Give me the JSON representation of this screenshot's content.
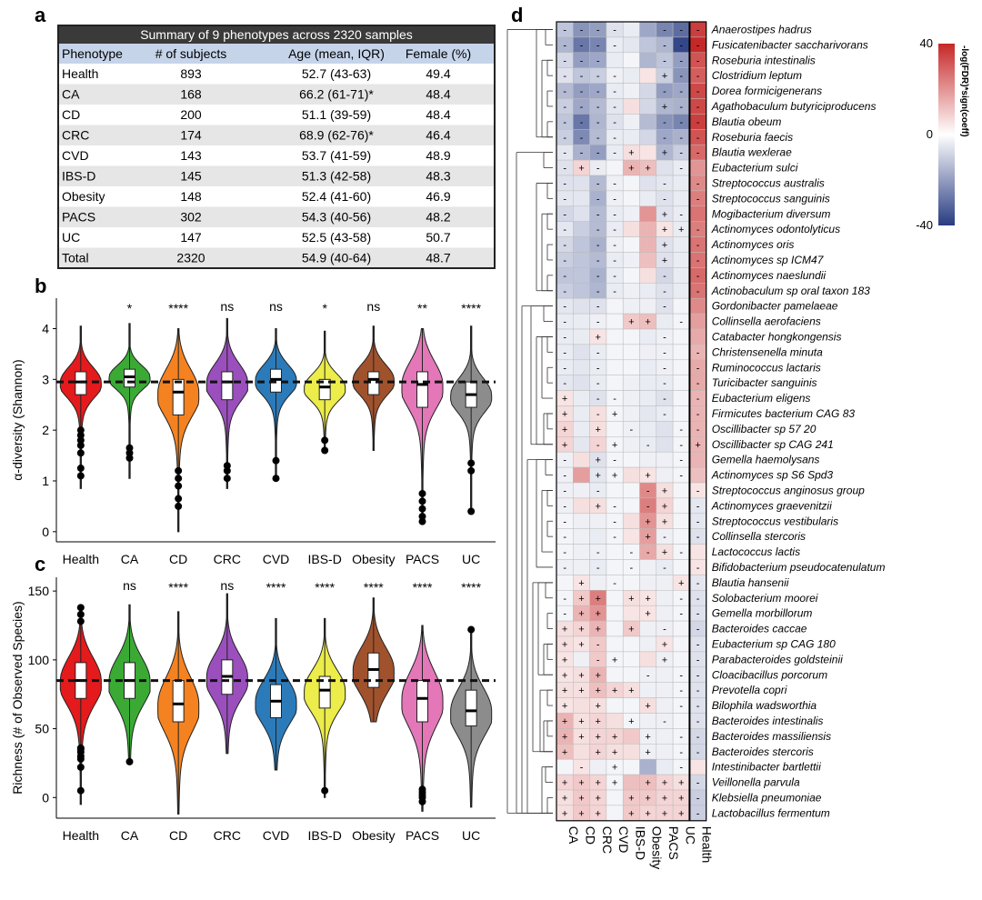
{
  "panel_labels": {
    "a": "a",
    "b": "b",
    "c": "c",
    "d": "d"
  },
  "table": {
    "title": "Summary of 9 phenotypes across 2320 samples",
    "headers": [
      "Phenotype",
      "# of subjects",
      "Age (mean, IQR)",
      "Female (%)"
    ],
    "rows": [
      [
        "Health",
        "893",
        "52.7 (43-63)",
        "49.4"
      ],
      [
        "CA",
        "168",
        "66.2 (61-71)*",
        "48.4"
      ],
      [
        "CD",
        "200",
        "51.1 (39-59)",
        "48.4"
      ],
      [
        "CRC",
        "174",
        "68.9 (62-76)*",
        "46.4"
      ],
      [
        "CVD",
        "143",
        "53.7 (41-59)",
        "48.9"
      ],
      [
        "IBS-D",
        "145",
        "51.3 (42-58)",
        "48.3"
      ],
      [
        "Obesity",
        "148",
        "52.4 (41-60)",
        "46.9"
      ],
      [
        "PACS",
        "302",
        "54.3 (40-56)",
        "48.2"
      ],
      [
        "UC",
        "147",
        "52.5 (43-58)",
        "50.7"
      ],
      [
        "Total",
        "2320",
        "54.9 (40-64)",
        "48.7"
      ]
    ]
  },
  "colors": {
    "Health": "#e41a1c",
    "CA": "#3aaa35",
    "CD": "#f58220",
    "CRC": "#9b4fbd",
    "CVD": "#2b7bba",
    "IBS-D": "#ecec4a",
    "Obesity": "#a0522d",
    "PACS": "#e377b8",
    "UC": "#8c8c8c"
  },
  "chart_data": [
    {
      "type": "violin",
      "title": "",
      "ylabel": "α-diversity (Shannon)",
      "xlabel": "",
      "categories": [
        "Health",
        "CA",
        "CD",
        "CRC",
        "CVD",
        "IBS-D",
        "Obesity",
        "PACS",
        "UC"
      ],
      "medians": [
        2.95,
        3.05,
        2.75,
        2.95,
        3.0,
        2.85,
        3.0,
        2.9,
        2.7
      ],
      "q1": [
        2.7,
        2.85,
        2.3,
        2.6,
        2.75,
        2.6,
        2.7,
        2.45,
        2.45
      ],
      "q3": [
        3.15,
        3.2,
        3.0,
        3.15,
        3.2,
        3.0,
        3.15,
        3.15,
        2.95
      ],
      "min": [
        0.85,
        1.05,
        0.0,
        0.85,
        1.05,
        1.55,
        1.6,
        0.15,
        0.4
      ],
      "max": [
        4.05,
        4.1,
        4.0,
        4.2,
        4.0,
        3.95,
        4.05,
        4.0,
        4.05
      ],
      "outliers": [
        [
          1.1,
          1.25,
          1.55,
          1.7,
          1.8,
          1.9,
          2.0
        ],
        [
          1.45,
          1.55,
          1.65
        ],
        [
          0.5,
          0.65,
          0.9,
          1.05,
          1.2
        ],
        [
          1.05,
          1.2,
          1.3
        ],
        [
          1.05,
          1.4
        ],
        [
          1.6,
          1.8
        ],
        [],
        [
          0.2,
          0.3,
          0.45,
          0.6,
          0.75
        ],
        [
          0.4,
          1.2,
          1.35
        ]
      ],
      "reference_line": 2.95,
      "significance": [
        "",
        "*",
        "****",
        "ns",
        "ns",
        "*",
        "ns",
        "**",
        "****"
      ],
      "ylim": [
        -0.2,
        4.6
      ],
      "yticks": [
        0,
        1,
        2,
        3,
        4
      ]
    },
    {
      "type": "violin",
      "title": "",
      "ylabel": "Richness (# of Observed Species)",
      "xlabel": "",
      "categories": [
        "Health",
        "CA",
        "CD",
        "CRC",
        "CVD",
        "IBS-D",
        "Obesity",
        "PACS",
        "UC"
      ],
      "medians": [
        85,
        85,
        68,
        88,
        70,
        78,
        93,
        72,
        63
      ],
      "q1": [
        72,
        72,
        55,
        75,
        58,
        65,
        80,
        55,
        52
      ],
      "q3": [
        98,
        98,
        85,
        100,
        82,
        88,
        105,
        85,
        78
      ],
      "min": [
        -5,
        25,
        -12,
        32,
        20,
        0,
        55,
        -10,
        -7
      ],
      "max": [
        140,
        140,
        135,
        148,
        130,
        130,
        145,
        125,
        122
      ],
      "outliers": [
        [
          5,
          22,
          28,
          30,
          33,
          35,
          36,
          128,
          133,
          138
        ],
        [
          26
        ],
        [],
        [],
        [],
        [
          5
        ],
        [],
        [
          -3,
          0,
          2,
          4,
          6
        ],
        [
          122
        ]
      ],
      "reference_line": 85,
      "significance": [
        "",
        "ns",
        "****",
        "ns",
        "****",
        "****",
        "****",
        "****",
        "****"
      ],
      "ylim": [
        -15,
        160
      ],
      "yticks": [
        0,
        50,
        100,
        150
      ]
    },
    {
      "type": "heatmap",
      "title": "",
      "legend_title": "-log(FDR)*sign(coeff)",
      "legend_ticks": [
        "40",
        "0",
        "-40"
      ],
      "columns": [
        "CA",
        "CD",
        "CRC",
        "CVD",
        "IBS-D",
        "Obesity",
        "PACS",
        "UC",
        "Health"
      ],
      "rows": [
        "Anaerostipes hadrus",
        "Fusicatenibacter saccharivorans",
        "Roseburia intestinalis",
        "Clostridium leptum",
        "Dorea formicigenerans",
        "Agathobaculum butyriciproducens",
        "Blautia obeum",
        "Roseburia faecis",
        "Blautia wexlerae",
        "Eubacterium sulci",
        "Streptococcus australis",
        "Streptococcus sanguinis",
        "Mogibacterium diversum",
        "Actinomyces odontolyticus",
        "Actinomyces oris",
        "Actinomyces sp ICM47",
        "Actinomyces naeslundii",
        "Actinobaculum sp oral taxon 183",
        "Gordonibacter pamelaeae",
        "Collinsella aerofaciens",
        "Catabacter hongkongensis",
        "Christensenella minuta",
        "Ruminococcus lactaris",
        "Turicibacter sanguinis",
        "Eubacterium eligens",
        "Firmicutes bacterium CAG 83",
        "Oscillibacter sp 57 20",
        "Oscillibacter sp CAG 241",
        "Gemella haemolysans",
        "Actinomyces sp S6 Spd3",
        "Streptococcus anginosus group",
        "Actinomyces graevenitzii",
        "Streptococcus vestibularis",
        "Collinsella stercoris",
        "Lactococcus lactis",
        "Bifidobacterium pseudocatenulatum",
        "Blautia hansenii",
        "Solobacterium moorei",
        "Gemella morbillorum",
        "Bacteroides caccae",
        "Eubacterium sp CAG 180",
        "Parabacteroides goldsteinii",
        "Cloacibacillus porcorum",
        "Prevotella copri",
        "Bilophila wadsworthia",
        "Bacteroides intestinalis",
        "Bacteroides massiliensis",
        "Bacteroides stercoris",
        "Intestinibacter bartlettii",
        "Veillonella parvula",
        "Klebsiella pneumoniae",
        "Lactobacillus fermentum"
      ],
      "values": [
        [
          -12,
          -22,
          -20,
          -6,
          -4,
          -18,
          -25,
          -30,
          36
        ],
        [
          -15,
          -28,
          -25,
          -4,
          -5,
          -12,
          -15,
          -38,
          40
        ],
        [
          -8,
          -20,
          -18,
          -4,
          -2,
          -15,
          -12,
          -20,
          32
        ],
        [
          -6,
          -12,
          -10,
          -3,
          -4,
          5,
          -10,
          -22,
          30
        ],
        [
          -14,
          -20,
          -18,
          -4,
          -3,
          -8,
          -20,
          -18,
          34
        ],
        [
          -10,
          -18,
          -14,
          -5,
          6,
          -8,
          -15,
          -16,
          34
        ],
        [
          -12,
          -28,
          -15,
          -6,
          -3,
          -14,
          -22,
          -25,
          36
        ],
        [
          -10,
          -24,
          -14,
          -4,
          -4,
          -8,
          -18,
          -16,
          32
        ],
        [
          -5,
          -16,
          -20,
          -4,
          6,
          5,
          -15,
          -10,
          28
        ],
        [
          -6,
          8,
          -4,
          -2,
          14,
          12,
          -6,
          -4,
          20
        ],
        [
          -6,
          -6,
          -14,
          -3,
          -2,
          -6,
          -5,
          -4,
          22
        ],
        [
          -5,
          -5,
          -16,
          -3,
          -2,
          -4,
          -6,
          -4,
          24
        ],
        [
          -8,
          -6,
          -14,
          -4,
          -3,
          20,
          -6,
          -4,
          26
        ],
        [
          -5,
          -10,
          -14,
          -4,
          6,
          14,
          5,
          -4,
          24
        ],
        [
          -8,
          -12,
          -16,
          -3,
          -2,
          14,
          -6,
          -4,
          26
        ],
        [
          -10,
          -12,
          -14,
          -4,
          -3,
          12,
          -6,
          -4,
          26
        ],
        [
          -12,
          -12,
          -16,
          -4,
          -2,
          6,
          -8,
          -4,
          28
        ],
        [
          -10,
          -12,
          -15,
          -4,
          -3,
          -4,
          -6,
          -4,
          26
        ],
        [
          -5,
          -6,
          -6,
          -2,
          -3,
          -3,
          -6,
          -2,
          22
        ],
        [
          -4,
          -4,
          -3,
          -2,
          10,
          12,
          -4,
          -2,
          18
        ],
        [
          -4,
          -4,
          5,
          -2,
          -2,
          -4,
          -3,
          -2,
          16
        ],
        [
          -4,
          -6,
          -4,
          -2,
          -2,
          -3,
          -3,
          -2,
          14
        ],
        [
          -4,
          -5,
          -4,
          -2,
          -2,
          -4,
          -3,
          -2,
          16
        ],
        [
          -5,
          -6,
          -4,
          -2,
          -3,
          -4,
          -4,
          -2,
          16
        ],
        [
          5,
          -4,
          -6,
          -2,
          -3,
          -4,
          -6,
          -2,
          14
        ],
        [
          6,
          -4,
          6,
          -2,
          -3,
          -5,
          -4,
          -2,
          14
        ],
        [
          8,
          -4,
          6,
          -2,
          -3,
          -4,
          -6,
          -2,
          14
        ],
        [
          8,
          -5,
          8,
          -2,
          -3,
          -4,
          -6,
          -2,
          14
        ],
        [
          -3,
          6,
          -6,
          -2,
          -2,
          -3,
          -3,
          -2,
          14
        ],
        [
          -3,
          18,
          -5,
          -2,
          6,
          5,
          -3,
          -2,
          12
        ],
        [
          -3,
          -3,
          -4,
          -2,
          -2,
          22,
          6,
          -2,
          5
        ],
        [
          -3,
          6,
          6,
          -2,
          -2,
          24,
          8,
          -2,
          -5
        ],
        [
          -2,
          -3,
          -3,
          -2,
          6,
          20,
          6,
          -2,
          -5
        ],
        [
          -2,
          -3,
          -4,
          -2,
          5,
          18,
          -3,
          -2,
          -6
        ],
        [
          -2,
          -3,
          -3,
          -2,
          -2,
          16,
          6,
          -2,
          5
        ],
        [
          -3,
          -3,
          -4,
          -2,
          -2,
          -3,
          -4,
          -2,
          5
        ],
        [
          -2,
          5,
          -3,
          -2,
          -2,
          -3,
          -3,
          5,
          -5
        ],
        [
          -2,
          10,
          24,
          -2,
          6,
          5,
          -3,
          -2,
          -6
        ],
        [
          -2,
          14,
          20,
          -2,
          5,
          5,
          -3,
          -2,
          -6
        ],
        [
          6,
          8,
          14,
          -2,
          10,
          -3,
          -3,
          -2,
          -8
        ],
        [
          6,
          5,
          10,
          -2,
          -2,
          -3,
          5,
          -2,
          -6
        ],
        [
          5,
          -3,
          10,
          -2,
          -2,
          6,
          -3,
          -2,
          -6
        ],
        [
          5,
          6,
          14,
          -2,
          -2,
          -3,
          -3,
          -2,
          -6
        ],
        [
          6,
          6,
          12,
          8,
          6,
          -3,
          -3,
          -2,
          -6
        ],
        [
          5,
          6,
          6,
          -2,
          -2,
          6,
          -3,
          -2,
          -6
        ],
        [
          14,
          6,
          8,
          6,
          -2,
          -3,
          -3,
          -2,
          -6
        ],
        [
          14,
          6,
          8,
          8,
          10,
          -3,
          -3,
          -2,
          -8
        ],
        [
          12,
          6,
          8,
          6,
          6,
          -3,
          -3,
          -2,
          -8
        ],
        [
          -2,
          5,
          -3,
          -2,
          -2,
          -16,
          -4,
          -2,
          5
        ],
        [
          8,
          10,
          8,
          -2,
          12,
          12,
          8,
          6,
          -8
        ],
        [
          6,
          10,
          8,
          -2,
          10,
          10,
          8,
          8,
          -10
        ],
        [
          6,
          10,
          8,
          -2,
          10,
          8,
          8,
          8,
          -10
        ]
      ],
      "signs": [
        "----  ---+",
        "----  ---+",
        "---   ---+",
        "----  +--+",
        "----  ---+",
        "----  +--+",
        "----  ---+",
        "----  ---+",
        "----+ +--+",
        "-+- ++ - +",
        "- --  - -+",
        "- --  - -+",
        "- --  +- +",
        "- --  ++- +",
        "- --  + -+",
        "- --  + -+",
        "- --  - -+",
        "- --  - -+",
        "- -   -  +",
        "- - ++ - +",
        "- +   -  +",
        "- -   - -+",
        "- -   - -+",
        "- -   - -+",
        "+ --  - -+",
        "+ -+  - -+",
        "+ + -  --+",
        "+ -+ - -+",
        "- +-   - +",
        "- ++ + - +",
        "- -  -+ --",
        "- +- -+ --",
        "-  - ++ --",
        "-  - +- --",
        "- - --+- --",
        "- - - - - +",
        " + -   +-",
        "-++ ++ --",
        "-++  + --",
        "+++ + - --",
        "++-   + --",
        "+ -+  + --",
        "+++  - --",
        "+++++  --",
        "+ +  + --",
        "+++ + - --",
        "++++ + --",
        "+ ++ + --",
        " - +   - -",
        "++++ +++-",
        "+++ ++++-",
        "+++ ++++-"
      ]
    }
  ]
}
